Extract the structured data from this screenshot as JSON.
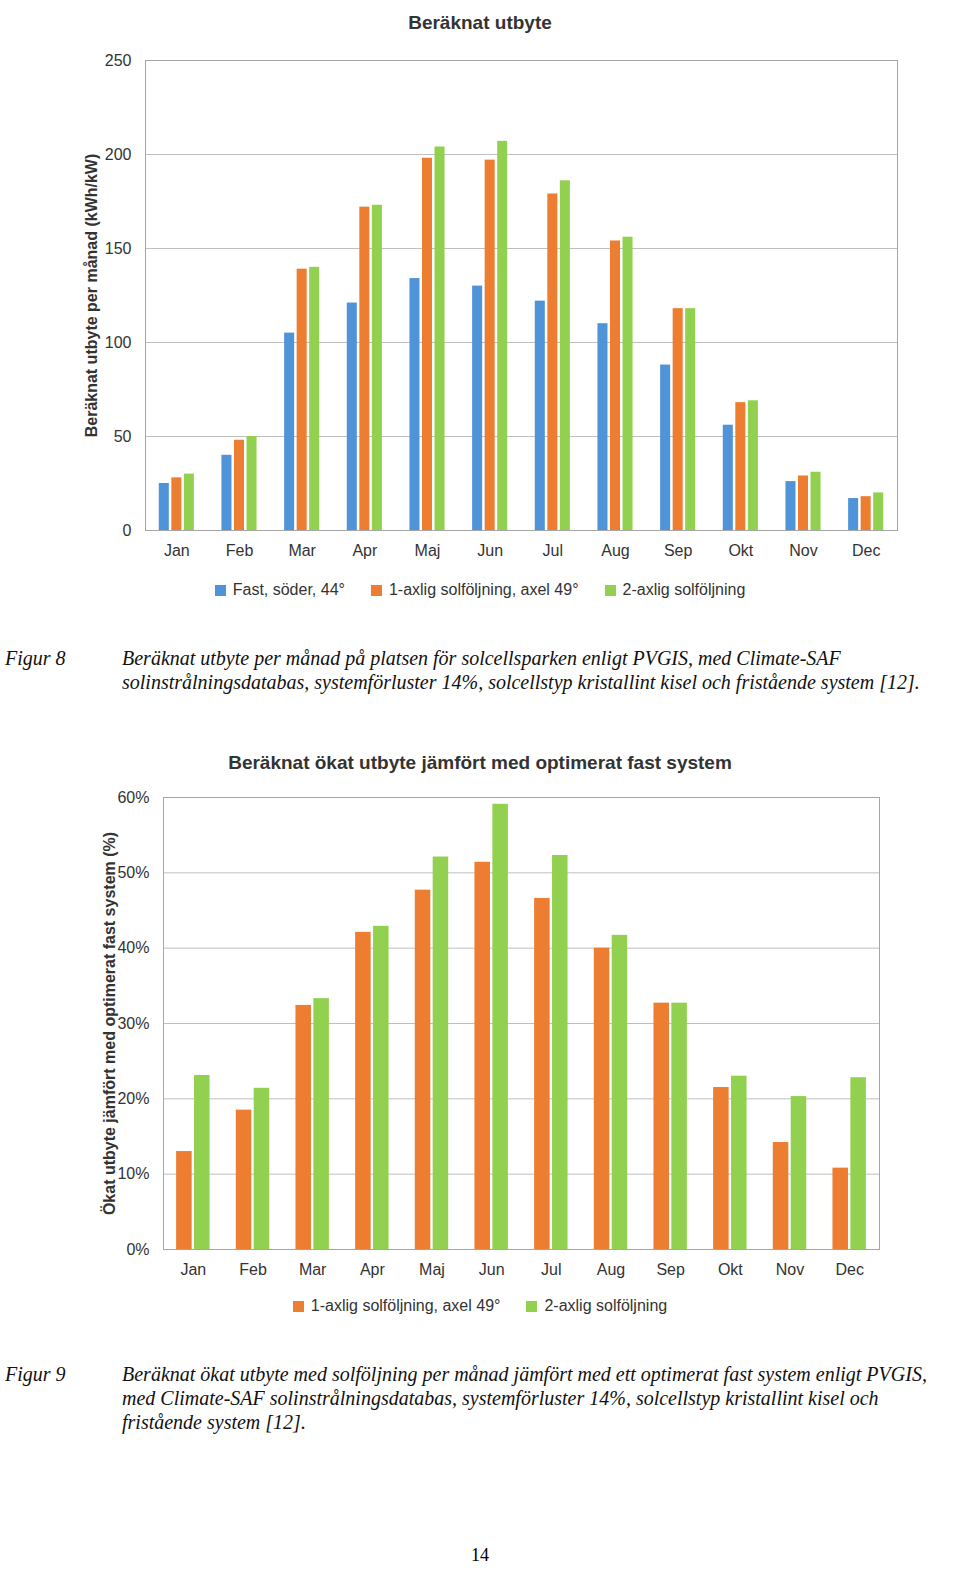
{
  "chart_data": [
    {
      "type": "bar",
      "title": "Beräknat utbyte",
      "y_label": "Beräknat utbyte per månad (kWh/kW)",
      "categories": [
        "Jan",
        "Feb",
        "Mar",
        "Apr",
        "Maj",
        "Jun",
        "Jul",
        "Aug",
        "Sep",
        "Okt",
        "Nov",
        "Dec"
      ],
      "series": [
        {
          "name": "Fast, söder, 44°",
          "color": "#4f94d9",
          "values": [
            25,
            40,
            105,
            121,
            134,
            130,
            122,
            110,
            88,
            56,
            26,
            17
          ]
        },
        {
          "name": "1-axlig solföljning, axel 49°",
          "color": "#ed7d31",
          "values": [
            28,
            48,
            139,
            172,
            198,
            197,
            179,
            154,
            118,
            68,
            29,
            18
          ]
        },
        {
          "name": "2-axlig solföljning",
          "color": "#92d050",
          "values": [
            30,
            50,
            140,
            173,
            204,
            207,
            186,
            156,
            118,
            69,
            31,
            20
          ]
        }
      ],
      "ylim": [
        0,
        250
      ],
      "yticks": [
        0,
        50,
        100,
        150,
        200,
        250
      ],
      "grid": true,
      "legend": "bottom",
      "caption_label": "Figur 8",
      "caption": "Beräknat utbyte per månad på platsen för solcellsparken enligt PVGIS, med Climate-SAF solinstrålningsdatabas, systemförluster 14%, solcellstyp kristallint kisel och fristående system [12]."
    },
    {
      "type": "bar",
      "title": "Beräknat ökat utbyte jämfört med optimerat fast system",
      "y_label": "Ökat utbyte jämfört med optimerat fast system (%)",
      "categories": [
        "Jan",
        "Feb",
        "Mar",
        "Apr",
        "Maj",
        "Jun",
        "Jul",
        "Aug",
        "Sep",
        "Okt",
        "Nov",
        "Dec"
      ],
      "series": [
        {
          "name": "1-axlig solföljning, axel 49°",
          "color": "#ed7d31",
          "values": [
            13.0,
            18.5,
            32.4,
            42.1,
            47.7,
            51.4,
            46.6,
            40.0,
            32.7,
            21.5,
            14.2,
            10.8
          ]
        },
        {
          "name": "2-axlig solföljning",
          "color": "#92d050",
          "values": [
            23.1,
            21.4,
            33.3,
            42.9,
            52.1,
            59.1,
            52.3,
            41.7,
            32.7,
            23.0,
            20.3,
            22.8
          ]
        }
      ],
      "ylim": [
        0,
        60
      ],
      "yticks": [
        {
          "value": 0,
          "label": "0%"
        },
        {
          "value": 10,
          "label": "10%"
        },
        {
          "value": 20,
          "label": "20%"
        },
        {
          "value": 30,
          "label": "30%"
        },
        {
          "value": 40,
          "label": "40%"
        },
        {
          "value": 50,
          "label": "50%"
        },
        {
          "value": 60,
          "label": "60%"
        }
      ],
      "grid": true,
      "legend": "bottom",
      "caption_label": "Figur 9",
      "caption": "Beräknat ökat utbyte med solföljning per månad jämfört med ett optimerat fast system enligt PVGIS, med Climate-SAF solinstrålningsdatabas, systemförluster 14%, solcellstyp kristallint kisel och fristående system [12]."
    }
  ],
  "page_number": 14
}
